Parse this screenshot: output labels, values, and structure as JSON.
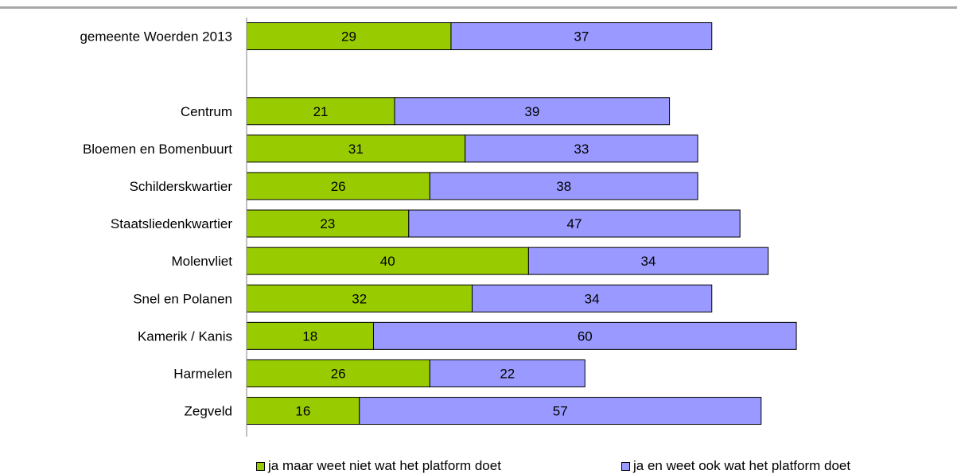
{
  "chart_data": {
    "type": "bar",
    "orientation": "horizontal",
    "stacked": true,
    "categories": [
      "gemeente Woerden 2013",
      "",
      "Centrum",
      "Bloemen en Bomenbuurt",
      "Schilderskwartier",
      "Staatsliedenkwartier",
      "Molenvliet",
      "Snel en Polanen",
      "Kamerik / Kanis",
      "Harmelen",
      "Zegveld"
    ],
    "series": [
      {
        "name": "ja maar weet niet wat het platform doet",
        "color": "#99cc00",
        "values": [
          29,
          null,
          21,
          31,
          26,
          23,
          40,
          32,
          18,
          26,
          16
        ]
      },
      {
        "name": "ja en weet ook wat het platform doet",
        "color": "#9999ff",
        "values": [
          37,
          null,
          39,
          33,
          38,
          47,
          34,
          34,
          60,
          22,
          57
        ]
      }
    ],
    "xlim": [
      0,
      100
    ],
    "grid": false,
    "legend_position": "bottom"
  }
}
